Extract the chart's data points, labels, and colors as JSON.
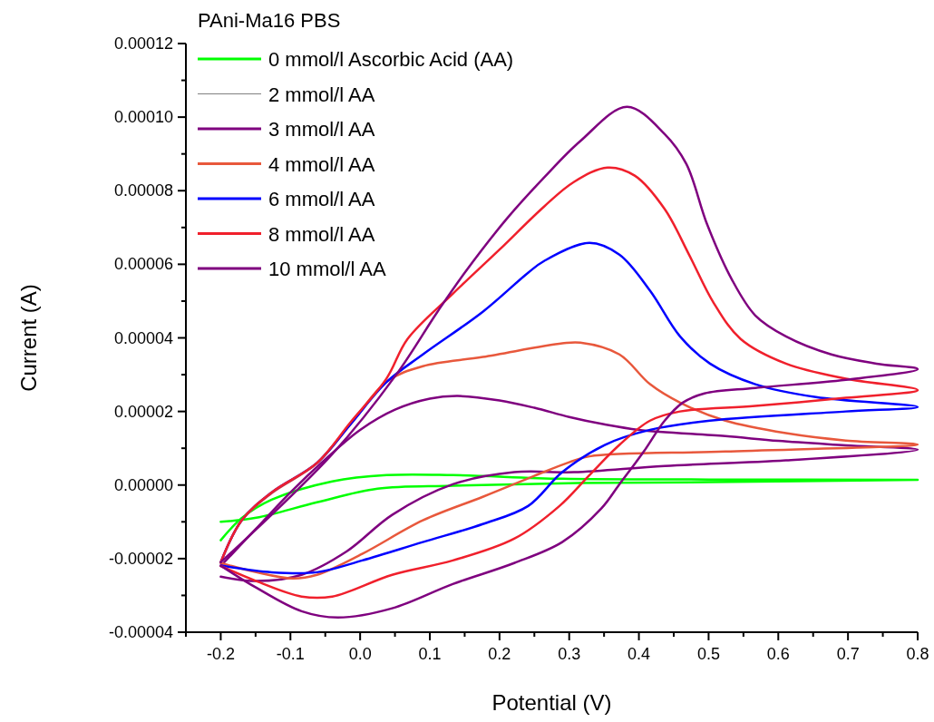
{
  "chart_data": {
    "type": "line",
    "xlabel": "Potential (V)",
    "ylabel": "Current (A)",
    "legend_title": "PAni-Ma16 PBS",
    "legend": "top left",
    "grid": false,
    "marker": "none",
    "line_style": "solid",
    "xlim": [
      -0.25,
      0.8
    ],
    "ylim": [
      -4e-05,
      0.00012
    ],
    "xticks": [
      {
        "value": -0.25,
        "label": null
      },
      {
        "value": -0.2,
        "label": "-0.2"
      },
      {
        "value": -0.15,
        "label": null
      },
      {
        "value": -0.1,
        "label": "-0.1"
      },
      {
        "value": -0.05,
        "label": null
      },
      {
        "value": 0,
        "label": "0.0"
      },
      {
        "value": 0.05,
        "label": null
      },
      {
        "value": 0.1,
        "label": "0.1"
      },
      {
        "value": 0.15,
        "label": null
      },
      {
        "value": 0.2,
        "label": "0.2"
      },
      {
        "value": 0.25,
        "label": null
      },
      {
        "value": 0.3,
        "label": "0.3"
      },
      {
        "value": 0.35,
        "label": null
      },
      {
        "value": 0.4,
        "label": "0.4"
      },
      {
        "value": 0.45,
        "label": null
      },
      {
        "value": 0.5,
        "label": "0.5"
      },
      {
        "value": 0.55,
        "label": null
      },
      {
        "value": 0.6,
        "label": "0.6"
      },
      {
        "value": 0.65,
        "label": null
      },
      {
        "value": 0.7,
        "label": "0.7"
      },
      {
        "value": 0.75,
        "label": null
      },
      {
        "value": 0.8,
        "label": "0.8"
      }
    ],
    "yticks": [
      {
        "value": -4e-05,
        "label": "-0.00004"
      },
      {
        "value": -3e-05,
        "label": null
      },
      {
        "value": -2e-05,
        "label": "-0.00002"
      },
      {
        "value": -1e-05,
        "label": null
      },
      {
        "value": 0,
        "label": "0.00000"
      },
      {
        "value": 1e-05,
        "label": null
      },
      {
        "value": 2e-05,
        "label": "0.00002"
      },
      {
        "value": 3e-05,
        "label": null
      },
      {
        "value": 4e-05,
        "label": "0.00004"
      },
      {
        "value": 5e-05,
        "label": null
      },
      {
        "value": 6e-05,
        "label": "0.00006"
      },
      {
        "value": 7e-05,
        "label": null
      },
      {
        "value": 8e-05,
        "label": "0.00008"
      },
      {
        "value": 9e-05,
        "label": null
      },
      {
        "value": 0.0001,
        "label": "0.00010"
      },
      {
        "value": 0.00011,
        "label": null
      },
      {
        "value": 0.00012,
        "label": "0.00012"
      }
    ],
    "series": [
      {
        "name": "0 mmol/l Ascorbic Acid (AA)",
        "color": "#00ff00",
        "x": [
          -0.2,
          -0.17,
          -0.127,
          -0.04,
          0.038,
          0.133,
          0.29,
          0.5,
          0.8,
          0.5,
          0.3,
          0.133,
          0.025,
          -0.062,
          -0.149,
          -0.2
        ],
        "values": [
          -1.5e-05,
          -9e-06,
          -4e-06,
          1e-06,
          2.7e-06,
          2.7e-06,
          1.7e-06,
          1.5e-06,
          1.4e-06,
          8e-07,
          5e-07,
          -2e-07,
          -1e-06,
          -4.7e-06,
          -8.9e-06,
          -1e-05
        ]
      },
      {
        "name": "2 mmol/l AA",
        "color": "#808080"
      },
      {
        "name": "3 mmol/l AA",
        "color": "#7f007f",
        "x": [
          -0.2,
          -0.15,
          -0.1,
          -0.05,
          0,
          0.05,
          0.1,
          0.14,
          0.2,
          0.25,
          0.3,
          0.35,
          0.4,
          0.524,
          0.6,
          0.697,
          0.8,
          0.611,
          0.437,
          0.307,
          0.221,
          0.133,
          0.046,
          -0.019,
          -0.084,
          -0.149,
          -0.2
        ],
        "values": [
          -2.2e-05,
          -1.2e-05,
          -2e-06,
          7e-06,
          1.5e-05,
          2.05e-05,
          2.35e-05,
          2.42e-05,
          2.3e-05,
          2.1e-05,
          1.85e-05,
          1.65e-05,
          1.5e-05,
          1.33e-05,
          1.2e-05,
          1.08e-05,
          9.6e-06,
          6.7e-06,
          5.2e-06,
          3.5e-06,
          3.5e-06,
          2e-07,
          -8.1e-06,
          -1.8e-05,
          -2.44e-05,
          -2.61e-05,
          -2.49e-05
        ]
      },
      {
        "name": "4 mmol/l AA",
        "color": "#e8583c",
        "x": [
          -0.2,
          -0.17,
          -0.127,
          -0.062,
          -0.014,
          0.038,
          0.09,
          0.176,
          0.29,
          0.316,
          0.372,
          0.416,
          0.459,
          0.524,
          0.611,
          0.697,
          0.8,
          0.524,
          0.329,
          0.3,
          0.25,
          0.176,
          0.09,
          0.003,
          -0.062,
          -0.097,
          -0.149,
          -0.2
        ],
        "values": [
          -2.1e-05,
          -9.6e-06,
          -2.2e-06,
          5.9e-06,
          1.65e-05,
          2.81e-05,
          3.23e-05,
          3.48e-05,
          3.85e-05,
          3.87e-05,
          3.55e-05,
          2.74e-05,
          2.24e-05,
          1.75e-05,
          1.41e-05,
          1.21e-05,
          1.1e-05,
          9.1e-06,
          7.8e-06,
          6.2e-06,
          2.5e-06,
          -3.2e-06,
          -9.6e-06,
          -1.87e-05,
          -2.44e-05,
          -2.54e-05,
          -2.37e-05,
          -2.12e-05
        ]
      },
      {
        "name": "6 mmol/l AA",
        "color": "#0000ff",
        "x": [
          -0.2,
          -0.17,
          -0.127,
          -0.062,
          -0.014,
          0.038,
          0.09,
          0.176,
          0.241,
          0.264,
          0.329,
          0.372,
          0.416,
          0.459,
          0.502,
          0.567,
          0.654,
          0.8,
          0.697,
          0.502,
          0.416,
          0.351,
          0.29,
          0.241,
          0.176,
          0.09,
          0.003,
          -0.062,
          -0.127,
          -0.2
        ],
        "values": [
          -2.1e-05,
          -9.6e-06,
          -2e-06,
          6e-06,
          1.65e-05,
          2.8e-05,
          3.55e-05,
          4.71e-05,
          5.77e-05,
          6.09e-05,
          6.58e-05,
          6.26e-05,
          5.28e-05,
          4.04e-05,
          3.3e-05,
          2.74e-05,
          2.39e-05,
          2.12e-05,
          2e-05,
          1.75e-05,
          1.5e-05,
          1.09e-05,
          3.5e-06,
          -5.7e-06,
          -1.06e-05,
          -1.55e-05,
          -2.05e-05,
          -2.37e-05,
          -2.37e-05,
          -2.19e-05
        ]
      },
      {
        "name": "8 mmol/l AA",
        "color": "#f0202c",
        "x": [
          -0.2,
          -0.17,
          -0.127,
          -0.062,
          -0.014,
          0.038,
          0.068,
          0.133,
          0.2,
          0.264,
          0.307,
          0.355,
          0.394,
          0.437,
          0.472,
          0.507,
          0.546,
          0.611,
          0.697,
          0.8,
          0.697,
          0.567,
          0.459,
          0.416,
          0.372,
          0.329,
          0.286,
          0.221,
          0.133,
          0.046,
          -0.04,
          -0.084,
          -0.149,
          -0.2
        ],
        "values": [
          -2.1e-05,
          -9.6e-06,
          -2e-06,
          6e-06,
          1.7e-05,
          2.9e-05,
          3.97e-05,
          5.2e-05,
          6.4e-05,
          7.57e-05,
          8.24e-05,
          8.63e-05,
          8.41e-05,
          7.5e-05,
          6.26e-05,
          4.96e-05,
          3.97e-05,
          3.3e-05,
          2.89e-05,
          2.58e-05,
          2.37e-05,
          2.15e-05,
          2e-05,
          1.75e-05,
          1.09e-05,
          2.7e-06,
          -5.7e-06,
          -1.46e-05,
          -2.05e-05,
          -2.44e-05,
          -3.03e-05,
          -3.03e-05,
          -2.61e-05,
          -2.2e-05
        ]
      },
      {
        "name": "10 mmol/l AA",
        "color": "#7f007f",
        "x": [
          -0.2,
          -0.04,
          0.051,
          0.111,
          0.15,
          0.211,
          0.264,
          0.316,
          0.383,
          0.437,
          0.468,
          0.498,
          0.533,
          0.567,
          0.611,
          0.676,
          0.741,
          0.8,
          0.697,
          0.567,
          0.494,
          0.463,
          0.437,
          0.407,
          0.372,
          0.346,
          0.29,
          0.221,
          0.133,
          0.046,
          -0.032,
          -0.084,
          -0.149,
          -0.2
        ],
        "values": [
          -2.1e-05,
          8.4e-06,
          2.98e-05,
          4.71e-05,
          5.77e-05,
          7.25e-05,
          8.36e-05,
          9.35e-05,
          0.0001028,
          9.54e-05,
          8.73e-05,
          7.08e-05,
          5.6e-05,
          4.61e-05,
          4.04e-05,
          3.55e-05,
          3.3e-05,
          3.15e-05,
          2.86e-05,
          2.64e-05,
          2.49e-05,
          2.24e-05,
          1.75e-05,
          9.1e-06,
          2e-07,
          -6.4e-06,
          -1.55e-05,
          -2.12e-05,
          -2.69e-05,
          -3.35e-05,
          -3.6e-05,
          -3.43e-05,
          -2.79e-05,
          -2.19e-05
        ]
      }
    ]
  }
}
